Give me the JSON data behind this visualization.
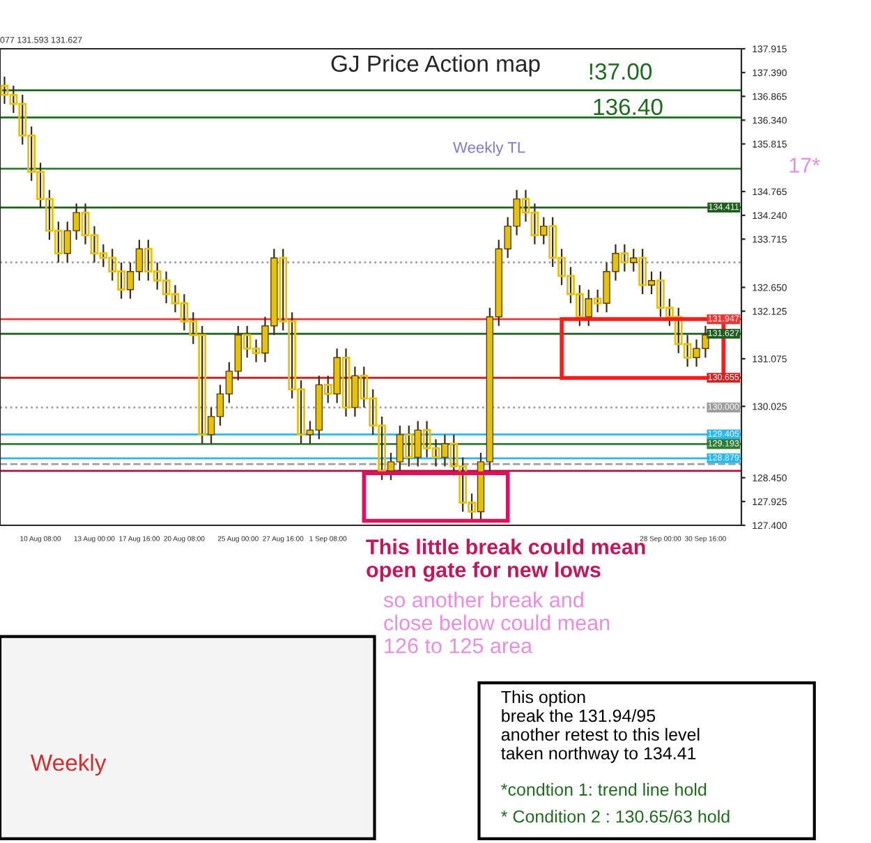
{
  "chart_data": {
    "type": "candlestick",
    "title": "GJ Price Action map",
    "categories": [
      null,
      null,
      null,
      null,
      "10 Aug 08:00",
      null,
      null,
      null,
      null,
      null,
      "13 Aug 00:00",
      null,
      null,
      null,
      null,
      "17 Aug 16:00",
      null,
      null,
      null,
      null,
      "20 Aug 08:00",
      null,
      null,
      null,
      null,
      null,
      "25 Aug 00:00",
      null,
      null,
      null,
      null,
      "27 Aug 16:00",
      null,
      null,
      null,
      null,
      "1 Sep 08:00",
      null,
      null,
      null,
      null,
      null,
      null,
      null,
      null,
      null,
      null,
      null,
      null,
      null,
      null,
      null,
      null,
      null,
      null,
      null,
      null,
      null,
      null,
      null,
      null,
      null,
      null,
      null,
      null,
      null,
      null,
      null,
      null,
      null,
      null,
      null,
      null,
      "28 Sep 00:00",
      null,
      null,
      null,
      null,
      "30 Sep 16:00"
    ],
    "series": [
      {
        "type": "candlestick",
        "color": "#e6c200",
        "ohlc": [
          [
            137.1,
            137.3,
            136.7,
            136.9
          ],
          [
            136.9,
            137.1,
            136.5,
            136.7
          ],
          [
            136.7,
            136.9,
            135.8,
            136.0
          ],
          [
            136.0,
            136.2,
            135.0,
            135.2
          ],
          [
            135.2,
            135.4,
            134.4,
            134.6
          ],
          [
            134.6,
            134.8,
            133.7,
            133.9
          ],
          [
            133.9,
            134.1,
            133.2,
            133.4
          ],
          [
            133.4,
            134.1,
            133.2,
            133.9
          ],
          [
            133.9,
            134.5,
            133.7,
            134.3
          ],
          [
            134.3,
            134.5,
            133.6,
            133.8
          ],
          [
            133.8,
            134.0,
            133.2,
            133.4
          ],
          [
            133.4,
            133.6,
            133.1,
            133.3
          ],
          [
            133.3,
            133.5,
            132.8,
            133.0
          ],
          [
            133.0,
            133.2,
            132.4,
            132.6
          ],
          [
            132.6,
            133.2,
            132.4,
            133.0
          ],
          [
            133.0,
            133.7,
            132.8,
            133.5
          ],
          [
            133.5,
            133.7,
            132.8,
            133.0
          ],
          [
            133.0,
            133.2,
            132.6,
            132.8
          ],
          [
            132.8,
            133.0,
            132.3,
            132.5
          ],
          [
            132.5,
            132.7,
            132.1,
            132.3
          ],
          [
            132.3,
            132.5,
            131.7,
            131.9
          ],
          [
            131.9,
            132.1,
            131.4,
            131.6
          ],
          [
            131.6,
            131.8,
            129.2,
            129.4
          ],
          [
            129.4,
            130.0,
            129.2,
            129.8
          ],
          [
            129.8,
            130.5,
            129.6,
            130.3
          ],
          [
            130.3,
            131.0,
            130.1,
            130.8
          ],
          [
            130.8,
            131.8,
            130.6,
            131.6
          ],
          [
            131.6,
            131.8,
            131.1,
            131.3
          ],
          [
            131.3,
            131.5,
            131.0,
            131.2
          ],
          [
            131.2,
            132.0,
            131.0,
            131.8
          ],
          [
            131.8,
            133.5,
            131.6,
            133.3
          ],
          [
            133.3,
            133.5,
            131.7,
            131.9
          ],
          [
            131.9,
            132.1,
            130.2,
            130.4
          ],
          [
            130.4,
            130.6,
            129.2,
            129.4
          ],
          [
            129.4,
            129.7,
            129.2,
            129.5
          ],
          [
            129.5,
            130.7,
            129.3,
            130.5
          ],
          [
            130.5,
            130.7,
            130.1,
            130.3
          ],
          [
            130.3,
            131.3,
            130.1,
            131.1
          ],
          [
            131.1,
            131.3,
            129.8,
            130.0
          ],
          [
            130.0,
            130.9,
            129.8,
            130.7
          ],
          [
            130.7,
            130.9,
            130.0,
            130.2
          ],
          [
            130.2,
            130.4,
            129.4,
            129.6
          ],
          [
            129.6,
            129.8,
            128.4,
            128.6
          ],
          [
            128.6,
            129.0,
            128.4,
            128.8
          ],
          [
            128.8,
            129.6,
            128.6,
            129.4
          ],
          [
            129.4,
            129.6,
            128.7,
            128.9
          ],
          [
            128.9,
            129.7,
            128.7,
            129.5
          ],
          [
            129.5,
            129.7,
            128.9,
            129.1
          ],
          [
            129.1,
            129.3,
            128.7,
            128.9
          ],
          [
            128.9,
            129.4,
            128.7,
            129.2
          ],
          [
            129.2,
            129.4,
            128.5,
            128.7
          ],
          [
            128.7,
            128.9,
            127.7,
            127.9
          ],
          [
            127.9,
            128.1,
            127.5,
            127.7
          ],
          [
            127.7,
            129.0,
            127.5,
            128.8
          ],
          [
            128.8,
            132.2,
            128.6,
            132.0
          ],
          [
            132.0,
            133.7,
            131.8,
            133.5
          ],
          [
            133.5,
            134.2,
            133.3,
            134.0
          ],
          [
            134.0,
            134.8,
            133.8,
            134.6
          ],
          [
            134.6,
            134.8,
            134.1,
            134.3
          ],
          [
            134.3,
            134.5,
            133.6,
            133.8
          ],
          [
            133.8,
            134.2,
            133.6,
            134.0
          ],
          [
            134.0,
            134.2,
            133.1,
            133.3
          ],
          [
            133.3,
            133.5,
            132.7,
            132.9
          ],
          [
            132.9,
            133.1,
            132.3,
            132.5
          ],
          [
            132.5,
            132.7,
            131.8,
            132.0
          ],
          [
            132.0,
            132.6,
            131.8,
            132.4
          ],
          [
            132.4,
            132.6,
            132.1,
            132.3
          ],
          [
            132.3,
            133.2,
            132.1,
            133.0
          ],
          [
            133.0,
            133.6,
            132.8,
            133.4
          ],
          [
            133.4,
            133.6,
            133.0,
            133.2
          ],
          [
            133.2,
            133.5,
            133.0,
            133.3
          ],
          [
            133.3,
            133.5,
            132.5,
            132.7
          ],
          [
            132.7,
            133.0,
            132.5,
            132.8
          ],
          [
            132.8,
            133.0,
            132.0,
            132.2
          ],
          [
            132.2,
            132.4,
            131.8,
            132.0
          ],
          [
            132.0,
            132.2,
            131.2,
            131.4
          ],
          [
            131.4,
            131.6,
            130.9,
            131.1
          ],
          [
            131.1,
            131.5,
            130.9,
            131.3
          ],
          [
            131.3,
            131.8,
            131.1,
            131.6
          ]
        ]
      }
    ],
    "ylim": [
      127.4,
      137.915
    ],
    "yticks": [
      {
        "value": 137.915,
        "label": "137.915"
      },
      {
        "value": 137.39,
        "label": "137.390"
      },
      {
        "value": 136.865,
        "label": "136.865"
      },
      {
        "value": 136.34,
        "label": "136.340"
      },
      {
        "value": 135.815,
        "label": "135.815"
      },
      {
        "value": 134.765,
        "label": "134.765"
      },
      {
        "value": 134.24,
        "label": "134.240"
      },
      {
        "value": 133.715,
        "label": "133.715"
      },
      {
        "value": 132.65,
        "label": "132.650"
      },
      {
        "value": 132.125,
        "label": "132.125"
      },
      {
        "value": 131.075,
        "label": "131.075"
      },
      {
        "value": 130.025,
        "label": "130.025"
      },
      {
        "value": 128.45,
        "label": "128.450"
      },
      {
        "value": 127.925,
        "label": "127.925"
      },
      {
        "value": 127.4,
        "label": "127.400"
      }
    ],
    "ref_lines": [
      {
        "axis": "y",
        "value": 137.0,
        "color": "#1e6b1e",
        "label": null
      },
      {
        "axis": "y",
        "value": 136.4,
        "color": "#1e6b1e",
        "label": null
      },
      {
        "axis": "y",
        "value": 135.27,
        "color": "#2e7d32",
        "label": null
      },
      {
        "axis": "y",
        "value": 134.411,
        "color": "#1e5e1e",
        "label": "134.411"
      },
      {
        "axis": "y",
        "value": 133.2,
        "color": "#9e9e9e",
        "line_style": "dotted",
        "label": null
      },
      {
        "axis": "y",
        "value": 131.947,
        "color": "#e53935",
        "label": "131.947"
      },
      {
        "axis": "y",
        "value": 131.627,
        "color": "#1e5e1e",
        "label": "131.627"
      },
      {
        "axis": "y",
        "value": 130.655,
        "color": "#c62828",
        "label": "130.655"
      },
      {
        "axis": "y",
        "value": 130.0,
        "color": "#9e9e9e",
        "line_style": "dotted",
        "label": "130.000"
      },
      {
        "axis": "y",
        "value": 129.405,
        "color": "#29b6f6",
        "label": "129.405"
      },
      {
        "axis": "y",
        "value": 129.193,
        "color": "#2e7d32",
        "label": "129.193"
      },
      {
        "axis": "y",
        "value": 128.879,
        "color": "#29b6f6",
        "label": "128.879"
      },
      {
        "axis": "y",
        "value": 128.75,
        "color": "#9e9e9e",
        "line_style": "dashed",
        "label": null
      },
      {
        "axis": "y",
        "value": 128.6,
        "color": "#b0103a",
        "label": null
      }
    ],
    "annotations": [
      "077 131.593 131.627",
      "Weekly TL",
      "!37.00",
      "136.40",
      "17*",
      "This little break could mean\nopen gate for new lows",
      "so another break and\nclose below could mean\n126 to 125 area",
      "This option\nbreak the 131.94/95\nanother retest to this level\ntaken northway to 134.41",
      "*condtion 1: trend line hold",
      "* Condition 2 : 130.65/63 hold",
      "Weekly"
    ]
  }
}
